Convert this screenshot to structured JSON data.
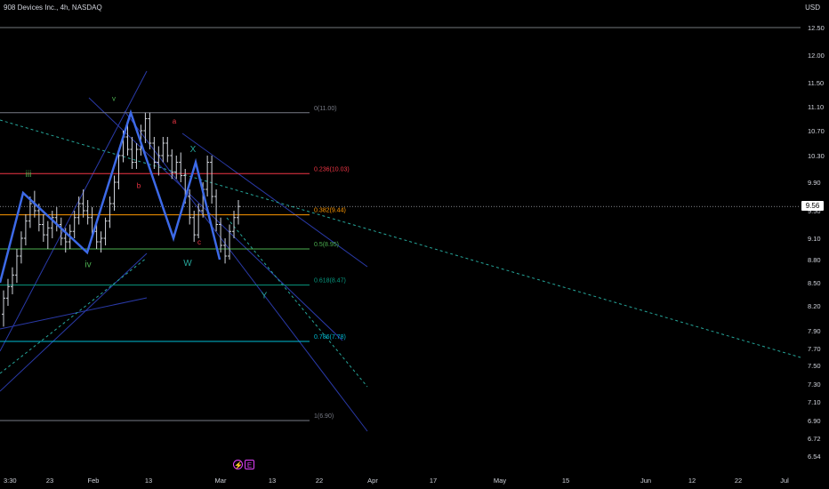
{
  "header": {
    "title": "908 Devices Inc., 4h, NASDAQ",
    "currency": "USD"
  },
  "current_price_label": "9.56",
  "icons": {
    "flash": "lightning-icon",
    "earnings": "E"
  },
  "chart_data": {
    "type": "candlestick",
    "symbol": "908 Devices Inc.",
    "interval": "4h",
    "exchange": "NASDAQ",
    "y_axis": {
      "ticks": [
        "12.50",
        "12.00",
        "11.50",
        "11.10",
        "10.70",
        "10.30",
        "9.90",
        "9.50",
        "9.10",
        "8.80",
        "8.50",
        "8.20",
        "7.90",
        "7.70",
        "7.50",
        "7.30",
        "7.10",
        "6.90",
        "6.72",
        "6.54"
      ],
      "ylim": [
        6.45,
        12.85
      ]
    },
    "x_axis": {
      "ticks": [
        "3:30",
        "23",
        "Feb",
        "13",
        "Mar",
        "13",
        "22",
        "Apr",
        "17",
        "May",
        "15",
        "Jun",
        "12",
        "22",
        "Jul"
      ]
    },
    "current_price": 9.56,
    "horizontal_level": 12.5,
    "fibonacci": [
      {
        "label": "0(11.00)",
        "price": 11.0,
        "color": "#787b86"
      },
      {
        "label": "0.236(10.03)",
        "price": 10.03,
        "color": "#f23645"
      },
      {
        "label": "0.382(9.44)",
        "price": 9.44,
        "color": "#ff9800"
      },
      {
        "label": "0.5(8.95)",
        "price": 8.95,
        "color": "#4caf50"
      },
      {
        "label": "0.618(8.47)",
        "price": 8.47,
        "color": "#089981"
      },
      {
        "label": "0.786(7.78)",
        "price": 7.78,
        "color": "#00bcd4"
      },
      {
        "label": "1(6.90)",
        "price": 6.9,
        "color": "#787b86"
      }
    ],
    "wave_path": [
      {
        "t": 0,
        "p": 8.5
      },
      {
        "t": 26,
        "p": 9.75
      },
      {
        "t": 98,
        "p": 8.9
      },
      {
        "t": 147,
        "p": 11.0
      },
      {
        "t": 195,
        "p": 9.1
      },
      {
        "t": 220,
        "p": 10.2
      },
      {
        "t": 247,
        "p": 8.8
      }
    ],
    "wave_labels": [
      {
        "text": "iii",
        "t": 32,
        "p": 9.98,
        "color": "#4caf50"
      },
      {
        "text": "v",
        "t": 128,
        "p": 11.2,
        "color": "#4caf50"
      },
      {
        "text": "iv",
        "t": 99,
        "p": 8.7,
        "color": "#4caf50"
      },
      {
        "text": "a",
        "t": 196,
        "p": 10.82,
        "color": "#f23645"
      },
      {
        "text": "b",
        "t": 156,
        "p": 9.82,
        "color": "#f23645"
      },
      {
        "text": "c",
        "t": 224,
        "p": 9.01,
        "color": "#f23645"
      },
      {
        "text": "X",
        "t": 217,
        "p": 10.36,
        "color": "#26a69a"
      },
      {
        "text": "W",
        "t": 211,
        "p": 8.72,
        "color": "#26a69a"
      },
      {
        "text": "Y",
        "t": 297,
        "p": 8.3,
        "color": "#26a69a"
      }
    ],
    "candles_ohlc": [
      [
        8.1,
        8.4,
        7.95,
        8.3
      ],
      [
        8.3,
        8.55,
        8.2,
        8.45
      ],
      [
        8.45,
        8.7,
        8.35,
        8.6
      ],
      [
        8.6,
        8.95,
        8.5,
        8.85
      ],
      [
        8.85,
        9.2,
        8.75,
        9.1
      ],
      [
        9.1,
        9.45,
        9.0,
        9.35
      ],
      [
        9.35,
        9.7,
        9.25,
        9.6
      ],
      [
        9.6,
        9.78,
        9.4,
        9.5
      ],
      [
        9.5,
        9.6,
        9.2,
        9.3
      ],
      [
        9.3,
        9.45,
        9.05,
        9.15
      ],
      [
        9.15,
        9.35,
        8.95,
        9.25
      ],
      [
        9.25,
        9.5,
        9.1,
        9.4
      ],
      [
        9.4,
        9.55,
        9.2,
        9.3
      ],
      [
        9.3,
        9.4,
        9.0,
        9.1
      ],
      [
        9.1,
        9.25,
        8.9,
        9.05
      ],
      [
        9.05,
        9.3,
        8.95,
        9.2
      ],
      [
        9.2,
        9.5,
        9.1,
        9.4
      ],
      [
        9.4,
        9.7,
        9.3,
        9.6
      ],
      [
        9.6,
        9.8,
        9.4,
        9.5
      ],
      [
        9.5,
        9.65,
        9.3,
        9.4
      ],
      [
        9.4,
        9.55,
        9.1,
        9.2
      ],
      [
        9.2,
        9.35,
        8.95,
        9.05
      ],
      [
        9.05,
        9.2,
        8.9,
        9.1
      ],
      [
        9.1,
        9.4,
        9.0,
        9.35
      ],
      [
        9.35,
        9.7,
        9.25,
        9.6
      ],
      [
        9.6,
        10.0,
        9.5,
        9.9
      ],
      [
        9.9,
        10.4,
        9.8,
        10.3
      ],
      [
        10.3,
        10.7,
        10.2,
        10.6
      ],
      [
        10.6,
        10.85,
        10.3,
        10.4
      ],
      [
        10.4,
        10.6,
        10.1,
        10.2
      ],
      [
        10.2,
        10.5,
        10.1,
        10.4
      ],
      [
        10.4,
        10.8,
        10.3,
        10.7
      ],
      [
        10.7,
        11.0,
        10.5,
        10.9
      ],
      [
        10.9,
        11.0,
        10.4,
        10.5
      ],
      [
        10.5,
        10.6,
        10.1,
        10.2
      ],
      [
        10.2,
        10.45,
        10.0,
        10.3
      ],
      [
        10.3,
        10.6,
        10.2,
        10.5
      ],
      [
        10.5,
        10.6,
        10.2,
        10.3
      ],
      [
        10.3,
        10.4,
        9.95,
        10.05
      ],
      [
        10.05,
        10.3,
        9.95,
        10.2
      ],
      [
        10.2,
        10.35,
        9.9,
        10.0
      ],
      [
        10.0,
        10.1,
        9.6,
        9.7
      ],
      [
        9.7,
        9.8,
        9.3,
        9.4
      ],
      [
        9.4,
        9.5,
        9.05,
        9.15
      ],
      [
        9.15,
        9.6,
        9.1,
        9.5
      ],
      [
        9.5,
        9.9,
        9.4,
        9.8
      ],
      [
        9.8,
        10.3,
        9.7,
        10.2
      ],
      [
        10.2,
        10.3,
        9.6,
        9.7
      ],
      [
        9.7,
        9.8,
        9.2,
        9.3
      ],
      [
        9.3,
        9.4,
        8.9,
        9.0
      ],
      [
        9.0,
        9.1,
        8.75,
        8.85
      ],
      [
        8.85,
        9.3,
        8.8,
        9.2
      ],
      [
        9.2,
        9.5,
        9.1,
        9.4
      ],
      [
        9.4,
        9.65,
        9.3,
        9.56
      ]
    ]
  }
}
